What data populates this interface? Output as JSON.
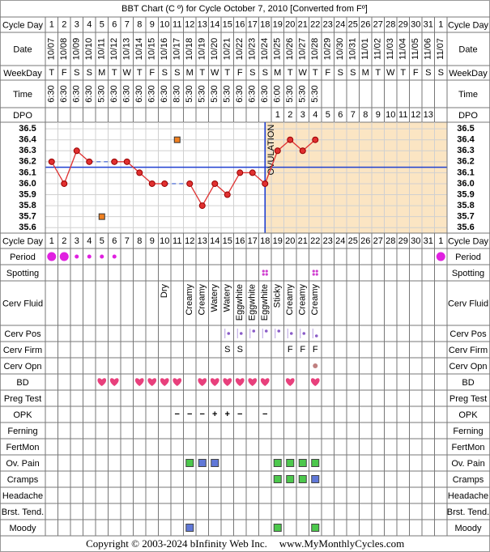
{
  "title": "BBT Chart (C º) for Cycle October 7, 2010  [Converted from Fº]",
  "header_rows": {
    "cycle_day": {
      "label": "Cycle Day",
      "values": [
        1,
        2,
        3,
        4,
        5,
        6,
        7,
        8,
        9,
        10,
        11,
        12,
        13,
        14,
        15,
        16,
        17,
        18,
        19,
        20,
        21,
        22,
        23,
        24,
        25,
        26,
        27,
        28,
        29,
        30,
        31,
        1
      ]
    },
    "date": {
      "label": "Date",
      "values": [
        "10/07",
        "10/08",
        "10/09",
        "10/10",
        "10/11",
        "10/12",
        "10/13",
        "10/14",
        "10/15",
        "10/16",
        "10/17",
        "10/18",
        "10/19",
        "10/20",
        "10/21",
        "10/22",
        "10/23",
        "10/24",
        "10/25",
        "10/26",
        "10/27",
        "10/28",
        "10/29",
        "10/30",
        "10/31",
        "11/01",
        "11/02",
        "11/03",
        "11/04",
        "11/05",
        "11/06",
        "11/07"
      ]
    },
    "weekday": {
      "label": "WeekDay",
      "values": [
        "T",
        "F",
        "S",
        "S",
        "M",
        "T",
        "W",
        "T",
        "F",
        "S",
        "S",
        "M",
        "T",
        "W",
        "T",
        "F",
        "S",
        "S",
        "M",
        "T",
        "W",
        "T",
        "F",
        "S",
        "S",
        "M",
        "T",
        "W",
        "T",
        "F",
        "S",
        "S"
      ]
    },
    "time": {
      "label": "Time",
      "values": [
        "6:30",
        "6:30",
        "6:30",
        "6:30",
        "5:30",
        "6:30",
        "6:30",
        "6:30",
        "6:30",
        "6:30",
        "8:30",
        "5:30",
        "5:30",
        "5:30",
        "5:30",
        "6:30",
        "6:30",
        "6:30",
        "6:00",
        "5:30",
        "5:30",
        "5:30",
        null,
        null,
        null,
        null,
        null,
        null,
        null,
        null,
        null,
        null
      ]
    },
    "dpo": {
      "label": "DPO",
      "values": [
        null,
        null,
        null,
        null,
        null,
        null,
        null,
        null,
        null,
        null,
        null,
        null,
        null,
        null,
        null,
        null,
        null,
        null,
        1,
        2,
        3,
        4,
        5,
        6,
        7,
        8,
        9,
        10,
        11,
        12,
        13,
        null
      ]
    }
  },
  "chart_data": {
    "type": "line",
    "values": [
      36.2,
      36.0,
      36.3,
      36.2,
      null,
      36.2,
      36.2,
      36.1,
      36.0,
      36.0,
      null,
      36.0,
      35.8,
      36.0,
      35.9,
      36.1,
      36.1,
      36.0,
      36.3,
      36.4,
      36.3,
      36.4,
      null,
      null,
      null,
      null,
      null,
      null,
      null,
      null,
      null,
      null
    ],
    "discarded": [
      null,
      null,
      null,
      null,
      35.7,
      null,
      null,
      null,
      null,
      null,
      36.4,
      null,
      null,
      null,
      null,
      null,
      null,
      null,
      null,
      null,
      null,
      null,
      null,
      null,
      null,
      null,
      null,
      null,
      null,
      null,
      null,
      null
    ],
    "color": "#e03030",
    "gap_color": "#5a78d8",
    "discarded_color": "#f08020",
    "ylim": [
      35.55,
      36.56
    ],
    "yticks": [
      36.5,
      36.4,
      36.3,
      36.2,
      36.1,
      {
        "value": 36,
        "label": "36.0"
      },
      35.9,
      35.8,
      35.7,
      35.6
    ],
    "grid": true,
    "coverline": 36.15,
    "coverline_color": "#1f3fd0",
    "ovulation": {
      "label": "OVULATION",
      "day_index": 17
    },
    "luteal_color": "#fbe5c3"
  },
  "bottom_row": {
    "label": "Cycle Day"
  },
  "severity_colors": {
    "1": "#4cc84c",
    "2": "#6078d8"
  },
  "symptom_rows": [
    {
      "label": "Period",
      "kind": "dot",
      "values": [
        2,
        2,
        1,
        1,
        1,
        1,
        null,
        null,
        null,
        null,
        null,
        null,
        null,
        null,
        null,
        null,
        null,
        null,
        null,
        null,
        null,
        null,
        null,
        null,
        null,
        null,
        null,
        null,
        null,
        null,
        null,
        2
      ]
    },
    {
      "label": "Spotting",
      "kind": "spots",
      "values": [
        null,
        null,
        null,
        null,
        null,
        null,
        null,
        null,
        null,
        null,
        null,
        null,
        null,
        null,
        null,
        null,
        null,
        1,
        null,
        null,
        null,
        1,
        null,
        null,
        null,
        null,
        null,
        null,
        null,
        null,
        null,
        null
      ]
    },
    {
      "label": "Cerv Fluid",
      "kind": "vtext",
      "values": [
        null,
        null,
        null,
        null,
        null,
        null,
        null,
        null,
        null,
        "Dry",
        null,
        "Creamy",
        "Creamy",
        "Watery",
        "Watery",
        "Eggwhite",
        "Eggwhite",
        "Eggwhite",
        "Sticky",
        "Creamy",
        "Creamy",
        "Creamy",
        null,
        null,
        null,
        null,
        null,
        null,
        null,
        null,
        null,
        null
      ]
    },
    {
      "label": "Cerv Pos",
      "kind": "pos",
      "values": [
        null,
        null,
        null,
        null,
        null,
        null,
        null,
        null,
        null,
        null,
        null,
        null,
        null,
        null,
        2,
        2,
        3,
        3,
        3,
        2,
        2,
        1,
        null,
        null,
        null,
        null,
        null,
        null,
        null,
        null,
        null,
        null
      ]
    },
    {
      "label": "Cerv Firm",
      "kind": "letter",
      "values": [
        null,
        null,
        null,
        null,
        null,
        null,
        null,
        null,
        null,
        null,
        null,
        null,
        null,
        null,
        "S",
        "S",
        null,
        null,
        null,
        "F",
        "F",
        "F",
        null,
        null,
        null,
        null,
        null,
        null,
        null,
        null,
        null,
        null
      ]
    },
    {
      "label": "Cerv Opn",
      "kind": "opn",
      "values": [
        null,
        null,
        null,
        null,
        null,
        null,
        null,
        null,
        null,
        null,
        null,
        null,
        null,
        null,
        null,
        null,
        null,
        null,
        null,
        null,
        null,
        1,
        null,
        null,
        null,
        null,
        null,
        null,
        null,
        null,
        null,
        null
      ]
    },
    {
      "label": "BD",
      "kind": "heart",
      "values": [
        null,
        null,
        null,
        null,
        1,
        1,
        null,
        1,
        1,
        1,
        1,
        null,
        1,
        1,
        1,
        1,
        1,
        1,
        null,
        1,
        null,
        1,
        null,
        null,
        null,
        null,
        null,
        null,
        null,
        null,
        null,
        null
      ]
    },
    {
      "label": "Preg Test",
      "kind": "none",
      "values": [
        null,
        null,
        null,
        null,
        null,
        null,
        null,
        null,
        null,
        null,
        null,
        null,
        null,
        null,
        null,
        null,
        null,
        null,
        null,
        null,
        null,
        null,
        null,
        null,
        null,
        null,
        null,
        null,
        null,
        null,
        null,
        null
      ]
    },
    {
      "label": "OPK",
      "kind": "sign",
      "values": [
        null,
        null,
        null,
        null,
        null,
        null,
        null,
        null,
        null,
        null,
        "−",
        "−",
        "−",
        "+",
        "+",
        "−",
        null,
        "−",
        null,
        null,
        null,
        null,
        null,
        null,
        null,
        null,
        null,
        null,
        null,
        null,
        null,
        null
      ]
    },
    {
      "label": "Ferning",
      "kind": "none",
      "values": [
        null,
        null,
        null,
        null,
        null,
        null,
        null,
        null,
        null,
        null,
        null,
        null,
        null,
        null,
        null,
        null,
        null,
        null,
        null,
        null,
        null,
        null,
        null,
        null,
        null,
        null,
        null,
        null,
        null,
        null,
        null,
        null
      ]
    },
    {
      "label": "FertMon",
      "kind": "none",
      "values": [
        null,
        null,
        null,
        null,
        null,
        null,
        null,
        null,
        null,
        null,
        null,
        null,
        null,
        null,
        null,
        null,
        null,
        null,
        null,
        null,
        null,
        null,
        null,
        null,
        null,
        null,
        null,
        null,
        null,
        null,
        null,
        null
      ]
    },
    {
      "label": "Ov. Pain",
      "kind": "square",
      "values": [
        null,
        null,
        null,
        null,
        null,
        null,
        null,
        null,
        null,
        null,
        null,
        1,
        2,
        2,
        null,
        null,
        null,
        null,
        1,
        1,
        1,
        1,
        null,
        null,
        null,
        null,
        null,
        null,
        null,
        null,
        null,
        null
      ]
    },
    {
      "label": "Cramps",
      "kind": "square",
      "values": [
        null,
        null,
        null,
        null,
        null,
        null,
        null,
        null,
        null,
        null,
        null,
        null,
        null,
        null,
        null,
        null,
        null,
        null,
        1,
        1,
        1,
        2,
        null,
        null,
        null,
        null,
        null,
        null,
        null,
        null,
        null,
        null
      ]
    },
    {
      "label": "Headache",
      "kind": "none",
      "values": [
        null,
        null,
        null,
        null,
        null,
        null,
        null,
        null,
        null,
        null,
        null,
        null,
        null,
        null,
        null,
        null,
        null,
        null,
        null,
        null,
        null,
        null,
        null,
        null,
        null,
        null,
        null,
        null,
        null,
        null,
        null,
        null
      ]
    },
    {
      "label": "Brst. Tend.",
      "kind": "none",
      "values": [
        null,
        null,
        null,
        null,
        null,
        null,
        null,
        null,
        null,
        null,
        null,
        null,
        null,
        null,
        null,
        null,
        null,
        null,
        null,
        null,
        null,
        null,
        null,
        null,
        null,
        null,
        null,
        null,
        null,
        null,
        null,
        null
      ]
    },
    {
      "label": "Moody",
      "kind": "square",
      "values": [
        null,
        null,
        null,
        null,
        null,
        null,
        null,
        null,
        null,
        null,
        null,
        2,
        null,
        null,
        null,
        null,
        null,
        null,
        1,
        null,
        null,
        1,
        null,
        null,
        null,
        null,
        null,
        null,
        null,
        null,
        null,
        null
      ]
    }
  ],
  "footer": {
    "copyright": "Copyright © 2003-2024 bInfinity Web Inc.",
    "site": "www.MyMonthlyCycles.com"
  }
}
